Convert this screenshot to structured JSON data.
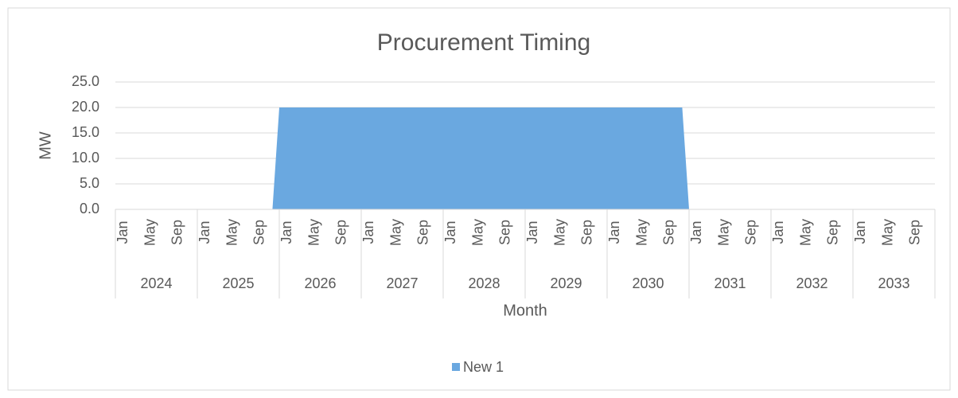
{
  "chart_data": {
    "type": "area",
    "title": "Procurement Timing",
    "x_label": "Month",
    "y_label": "MW",
    "categories": [
      "Jan",
      null,
      null,
      null,
      "May",
      null,
      null,
      null,
      "Sep",
      null,
      null,
      null,
      "Jan",
      null,
      null,
      null,
      "May",
      null,
      null,
      null,
      "Sep",
      null,
      null,
      null,
      "Jan",
      null,
      null,
      null,
      "May",
      null,
      null,
      null,
      "Sep",
      null,
      null,
      null,
      "Jan",
      null,
      null,
      null,
      "May",
      null,
      null,
      null,
      "Sep",
      null,
      null,
      null,
      "Jan",
      null,
      null,
      null,
      "May",
      null,
      null,
      null,
      "Sep",
      null,
      null,
      null,
      "Jan",
      null,
      null,
      null,
      "May",
      null,
      null,
      null,
      "Sep",
      null,
      null,
      null,
      "Jan",
      null,
      null,
      null,
      "May",
      null,
      null,
      null,
      "Sep",
      null,
      null,
      null,
      "Jan",
      null,
      null,
      null,
      "May",
      null,
      null,
      null,
      "Sep",
      null,
      null,
      null,
      "Jan",
      null,
      null,
      null,
      "May",
      null,
      null,
      null,
      "Sep",
      null,
      null,
      null,
      "Jan",
      null,
      null,
      null,
      "May",
      null,
      null,
      null,
      "Sep",
      null,
      null,
      null
    ],
    "years": [
      "2024",
      "2025",
      "2026",
      "2027",
      "2028",
      "2029",
      "2030",
      "2031",
      "2032",
      "2033"
    ],
    "series": [
      {
        "name": "New 1",
        "color": "#6aa8e0",
        "values": [
          0,
          0,
          0,
          0,
          0,
          0,
          0,
          0,
          0,
          0,
          0,
          0,
          0,
          0,
          0,
          0,
          0,
          0,
          0,
          0,
          0,
          0,
          0,
          0,
          20,
          20,
          20,
          20,
          20,
          20,
          20,
          20,
          20,
          20,
          20,
          20,
          20,
          20,
          20,
          20,
          20,
          20,
          20,
          20,
          20,
          20,
          20,
          20,
          20,
          20,
          20,
          20,
          20,
          20,
          20,
          20,
          20,
          20,
          20,
          20,
          20,
          20,
          20,
          20,
          20,
          20,
          20,
          20,
          20,
          20,
          20,
          20,
          20,
          20,
          20,
          20,
          20,
          20,
          20,
          20,
          20,
          20,
          20,
          20,
          0,
          0,
          0,
          0,
          0,
          0,
          0,
          0,
          0,
          0,
          0,
          0,
          0,
          0,
          0,
          0,
          0,
          0,
          0,
          0,
          0,
          0,
          0,
          0,
          0,
          0,
          0,
          0,
          0,
          0,
          0,
          0,
          0,
          0,
          0,
          0
        ]
      }
    ],
    "ylim": [
      0,
      25
    ],
    "yticks": [
      {
        "value": 0,
        "label": "0.0"
      },
      {
        "value": 5,
        "label": "5.0"
      },
      {
        "value": 10,
        "label": "10.0"
      },
      {
        "value": 15,
        "label": "15.0"
      },
      {
        "value": 20,
        "label": "20.0"
      },
      {
        "value": 25,
        "label": "25.0"
      }
    ],
    "grid": true,
    "legend": "bottom"
  }
}
